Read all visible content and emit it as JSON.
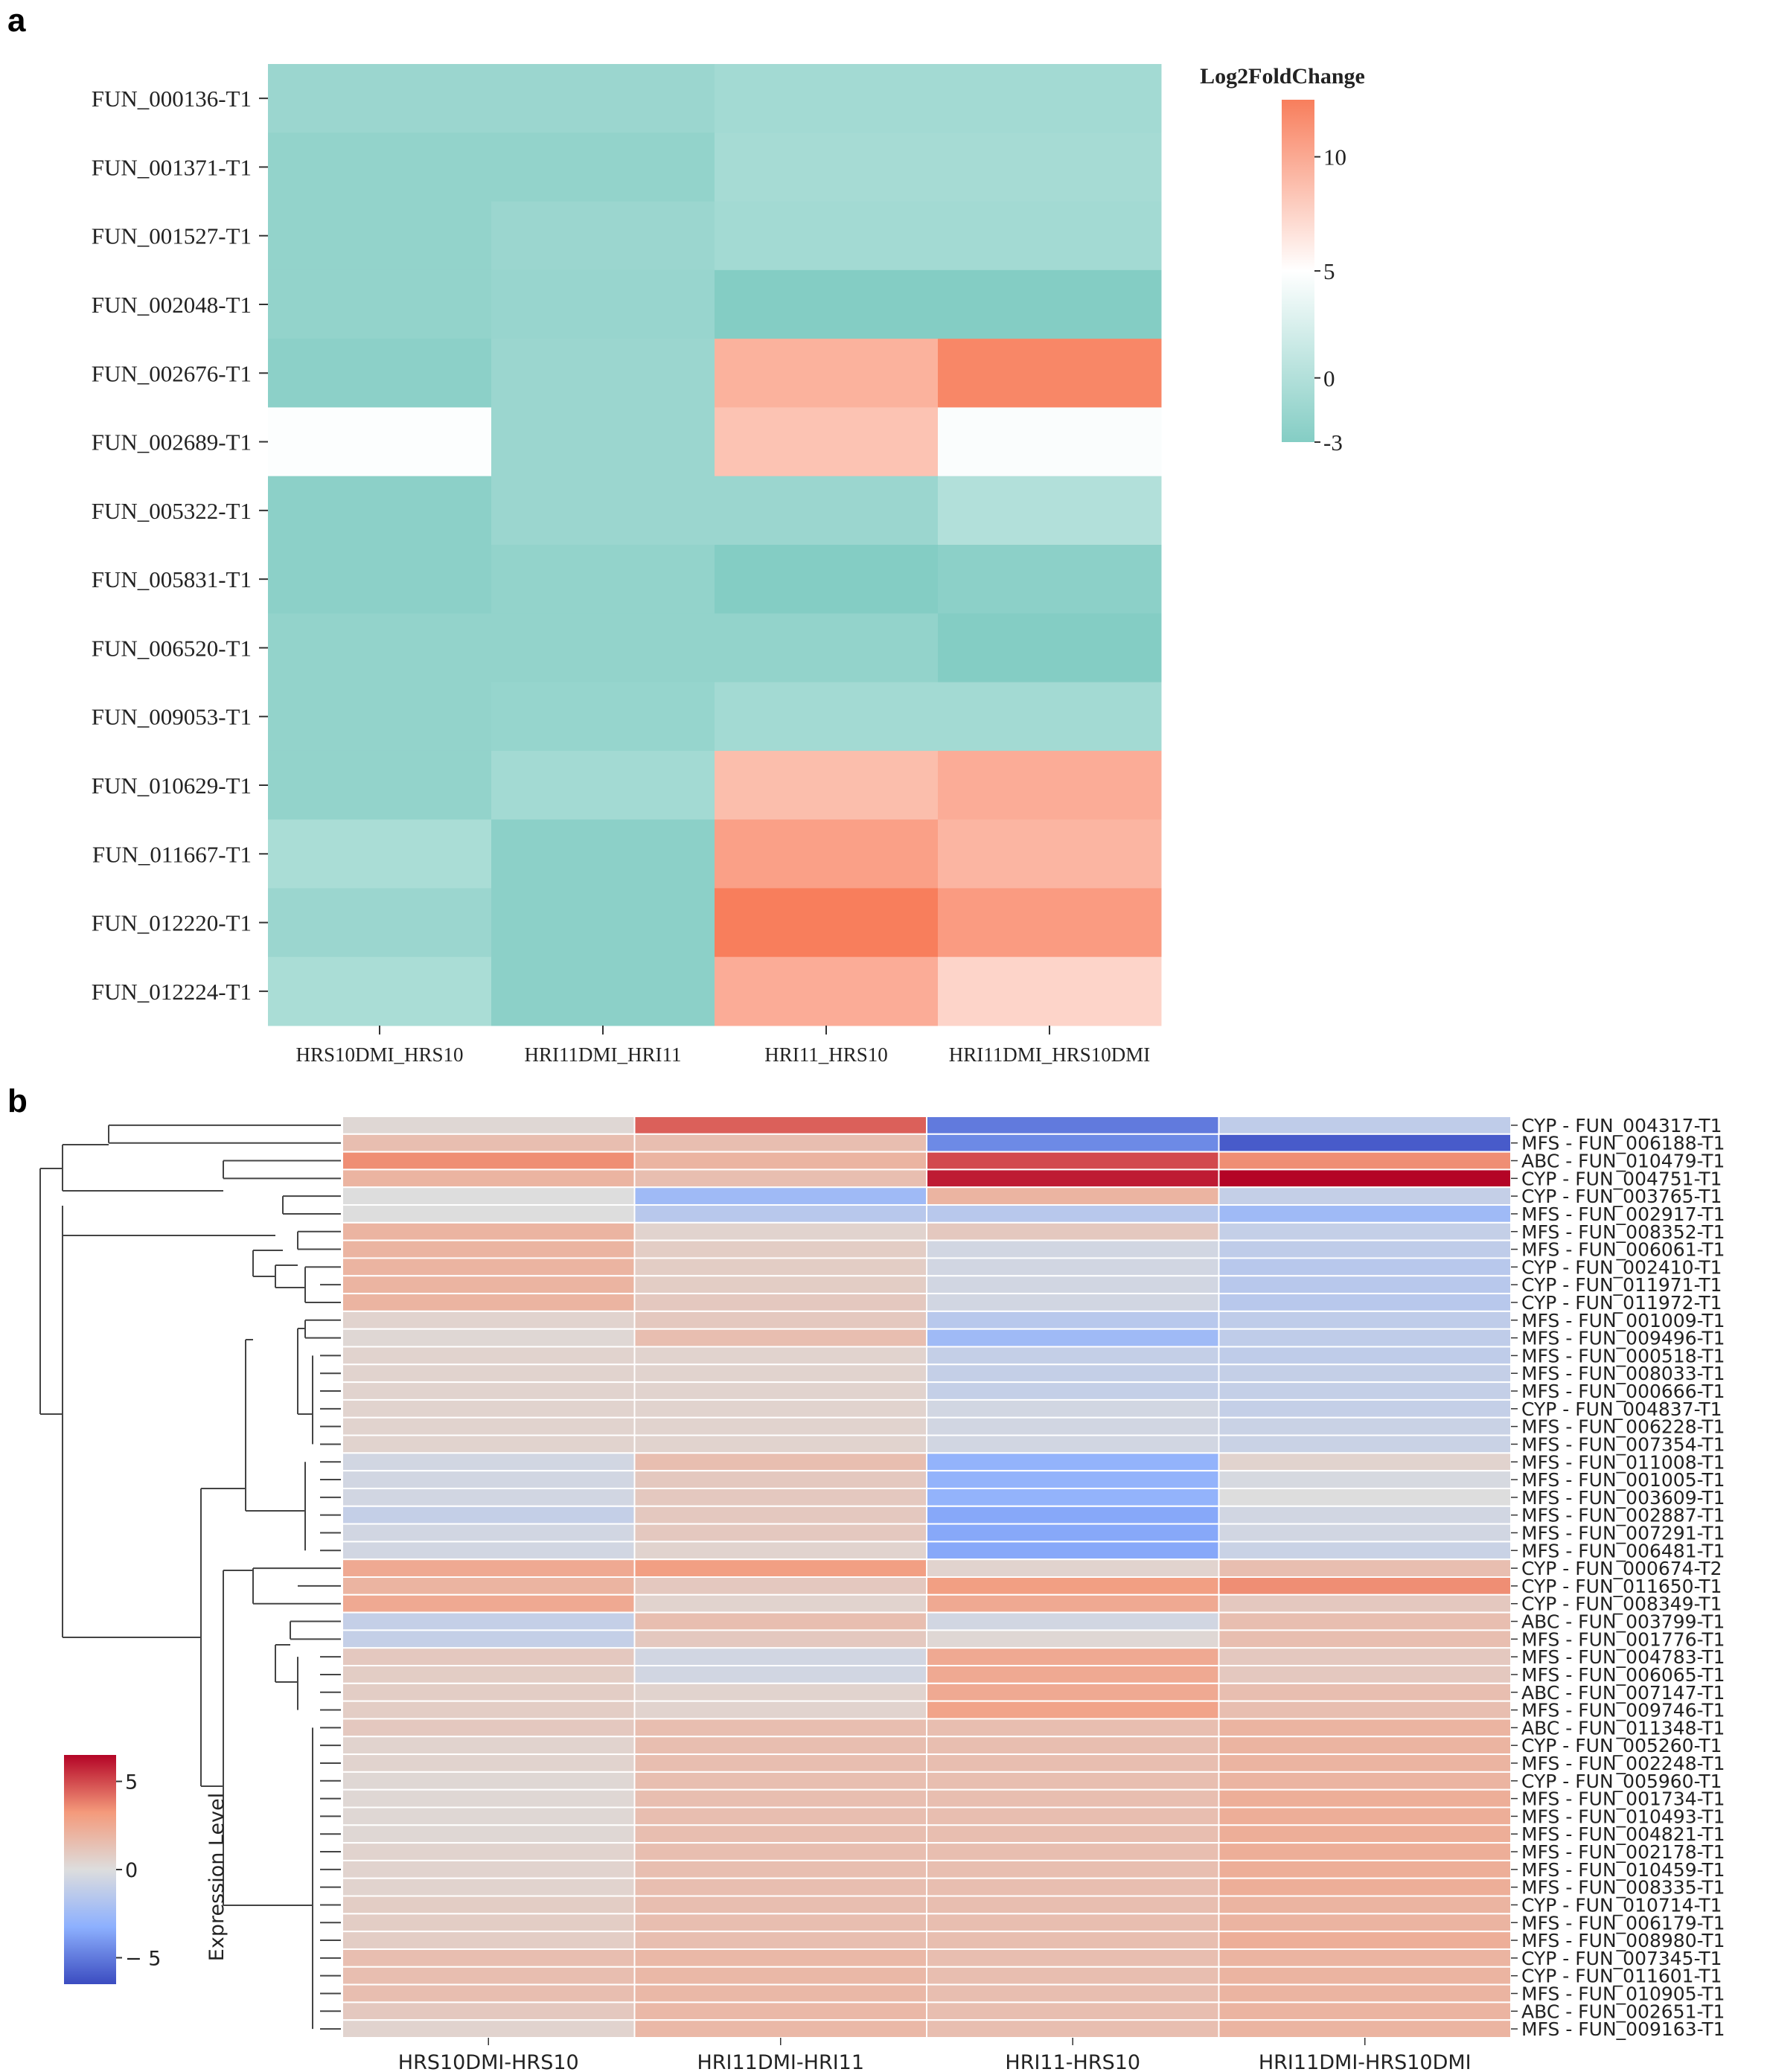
{
  "chart_data": [
    {
      "panel": "a",
      "type": "heatmap",
      "colorbar_title": "Log2FoldChange",
      "colorbar_ticks": [
        10,
        5,
        0,
        -3
      ],
      "colorbar_tick_labels": [
        "10",
        "5",
        "0",
        "-3"
      ],
      "vmin": -3,
      "vmax": 12.5,
      "columns": [
        "HRS10DMI_HRS10",
        "HRI11DMI_HRI11",
        "HRI11_HRS10",
        "HRI11DMI_HRS10DMI"
      ],
      "rows": [
        "FUN_000136-T1",
        "FUN_001371-T1",
        "FUN_001527-T1",
        "FUN_002048-T1",
        "FUN_002676-T1",
        "FUN_002689-T1",
        "FUN_005322-T1",
        "FUN_005831-T1",
        "FUN_006520-T1",
        "FUN_009053-T1",
        "FUN_010629-T1",
        "FUN_011667-T1",
        "FUN_012220-T1",
        "FUN_012224-T1"
      ],
      "values": [
        [
          -1.5,
          -1.5,
          -1.0,
          -1.0
        ],
        [
          -2.0,
          -2.0,
          -0.8,
          -0.8
        ],
        [
          -2.0,
          -1.5,
          -1.0,
          -1.0
        ],
        [
          -2.0,
          -1.7,
          -3.0,
          -3.0
        ],
        [
          -2.5,
          -1.5,
          9.5,
          12.0
        ],
        [
          4.8,
          -1.5,
          8.5,
          4.7
        ],
        [
          -2.5,
          -1.5,
          -1.5,
          0.0
        ],
        [
          -2.5,
          -2.0,
          -3.0,
          -2.5
        ],
        [
          -2.0,
          -2.0,
          -2.0,
          -3.0
        ],
        [
          -2.0,
          -1.8,
          -1.0,
          -1.0
        ],
        [
          -2.0,
          -1.0,
          8.8,
          9.8
        ],
        [
          -0.5,
          -2.5,
          10.5,
          9.3
        ],
        [
          -1.5,
          -2.5,
          12.5,
          10.8
        ],
        [
          -0.5,
          -2.5,
          9.8,
          7.5
        ]
      ]
    },
    {
      "panel": "b",
      "type": "heatmap",
      "colorbar_title": "Expression Level",
      "colorbar_ticks": [
        5,
        0,
        -5
      ],
      "colorbar_tick_labels": [
        "5",
        "0",
        "− 5"
      ],
      "vmin": -6.5,
      "vmax": 6.5,
      "columns": [
        "HRS10DMI-HRS10",
        "HRI11DMI-HRI11",
        "HRI11-HRS10",
        "HRI11DMI-HRS10DMI"
      ],
      "rows": [
        "CYP - FUN_004317-T1",
        "MFS - FUN_006188-T1",
        "ABC - FUN_010479-T1",
        "CYP - FUN_004751-T1",
        "CYP - FUN_003765-T1",
        "MFS - FUN_002917-T1",
        "MFS - FUN_008352-T1",
        "MFS - FUN_006061-T1",
        "CYP - FUN_002410-T1",
        "CYP - FUN_011971-T1",
        "CYP - FUN_011972-T1",
        "MFS - FUN_001009-T1",
        "MFS - FUN_009496-T1",
        "MFS - FUN_000518-T1",
        "MFS - FUN_008033-T1",
        "MFS - FUN_000666-T1",
        "CYP - FUN_004837-T1",
        "MFS - FUN_006228-T1",
        "MFS - FUN_007354-T1",
        "MFS - FUN_011008-T1",
        "MFS - FUN_001005-T1",
        "MFS - FUN_003609-T1",
        "MFS - FUN_002887-T1",
        "MFS - FUN_007291-T1",
        "MFS - FUN_006481-T1",
        "CYP - FUN_000674-T2",
        "CYP - FUN_011650-T1",
        "CYP - FUN_008349-T1",
        "ABC - FUN_003799-T1",
        "MFS - FUN_001776-T1",
        "MFS - FUN_004783-T1",
        "MFS - FUN_006065-T1",
        "ABC - FUN_007147-T1",
        "MFS - FUN_009746-T1",
        "ABC - FUN_011348-T1",
        "CYP - FUN_005260-T1",
        "MFS - FUN_002248-T1",
        "CYP - FUN_005960-T1",
        "MFS - FUN_001734-T1",
        "MFS - FUN_010493-T1",
        "MFS - FUN_004821-T1",
        "MFS - FUN_002178-T1",
        "MFS - FUN_010459-T1",
        "MFS - FUN_008335-T1",
        "CYP - FUN_010714-T1",
        "MFS - FUN_006179-T1",
        "MFS - FUN_008980-T1",
        "CYP - FUN_007345-T1",
        "CYP - FUN_011601-T1",
        "MFS - FUN_010905-T1",
        "ABC - FUN_002651-T1",
        "MFS - FUN_009163-T1"
      ],
      "values": [
        [
          0.3,
          4.5,
          -5.0,
          -1.2
        ],
        [
          1.5,
          1.5,
          -4.5,
          -6.0
        ],
        [
          3.5,
          2.0,
          5.0,
          3.5
        ],
        [
          2.0,
          1.5,
          6.0,
          6.5
        ],
        [
          0.0,
          -2.5,
          2.0,
          -1.0
        ],
        [
          0.0,
          -1.5,
          -1.5,
          -2.5
        ],
        [
          2.0,
          0.5,
          1.0,
          -1.0
        ],
        [
          2.0,
          0.8,
          -0.5,
          -1.2
        ],
        [
          2.0,
          0.8,
          -0.5,
          -1.5
        ],
        [
          2.0,
          0.8,
          -0.5,
          -1.5
        ],
        [
          2.0,
          1.0,
          -0.5,
          -1.5
        ],
        [
          0.5,
          1.0,
          -1.5,
          -1.2
        ],
        [
          0.3,
          1.5,
          -2.5,
          -1.2
        ],
        [
          0.5,
          0.5,
          -1.0,
          -1.2
        ],
        [
          0.5,
          0.5,
          -1.0,
          -1.0
        ],
        [
          0.5,
          0.5,
          -1.0,
          -1.0
        ],
        [
          0.5,
          0.5,
          -0.5,
          -1.0
        ],
        [
          0.5,
          0.5,
          -0.5,
          -0.8
        ],
        [
          0.5,
          0.5,
          -0.5,
          -0.8
        ],
        [
          -0.5,
          1.5,
          -3.0,
          0.5
        ],
        [
          -0.5,
          1.0,
          -3.0,
          -0.3
        ],
        [
          -0.5,
          1.0,
          -3.0,
          0.0
        ],
        [
          -1.0,
          1.0,
          -3.5,
          -0.5
        ],
        [
          -0.5,
          1.0,
          -3.5,
          -0.5
        ],
        [
          -0.5,
          0.5,
          -3.5,
          -0.8
        ],
        [
          2.5,
          3.0,
          0.5,
          1.5
        ],
        [
          2.0,
          1.0,
          3.0,
          3.5
        ],
        [
          2.5,
          0.5,
          2.5,
          1.0
        ],
        [
          -1.0,
          1.5,
          -0.5,
          1.5
        ],
        [
          -1.0,
          1.0,
          0.3,
          1.5
        ],
        [
          1.0,
          -0.5,
          2.5,
          1.0
        ],
        [
          0.8,
          -0.5,
          2.5,
          1.0
        ],
        [
          0.8,
          0.5,
          2.5,
          1.5
        ],
        [
          0.8,
          0.5,
          2.8,
          1.5
        ],
        [
          1.0,
          1.5,
          1.5,
          2.0
        ],
        [
          0.5,
          1.5,
          1.5,
          2.0
        ],
        [
          0.5,
          1.5,
          1.5,
          2.0
        ],
        [
          0.3,
          1.5,
          1.5,
          2.0
        ],
        [
          0.3,
          1.5,
          1.5,
          2.3
        ],
        [
          0.3,
          1.5,
          1.5,
          2.3
        ],
        [
          0.3,
          1.5,
          1.5,
          2.3
        ],
        [
          0.5,
          1.5,
          1.5,
          2.3
        ],
        [
          0.5,
          1.5,
          1.5,
          2.3
        ],
        [
          0.5,
          1.5,
          1.5,
          2.3
        ],
        [
          0.8,
          1.5,
          1.5,
          2.0
        ],
        [
          0.8,
          1.5,
          1.5,
          2.0
        ],
        [
          0.8,
          1.5,
          1.5,
          2.3
        ],
        [
          1.5,
          1.8,
          1.5,
          2.0
        ],
        [
          1.5,
          1.8,
          1.5,
          2.0
        ],
        [
          1.5,
          1.8,
          1.5,
          2.0
        ],
        [
          1.0,
          1.8,
          1.5,
          2.0
        ],
        [
          0.5,
          1.8,
          1.5,
          2.0
        ]
      ]
    }
  ],
  "panels": {
    "a": "a",
    "b": "b"
  }
}
